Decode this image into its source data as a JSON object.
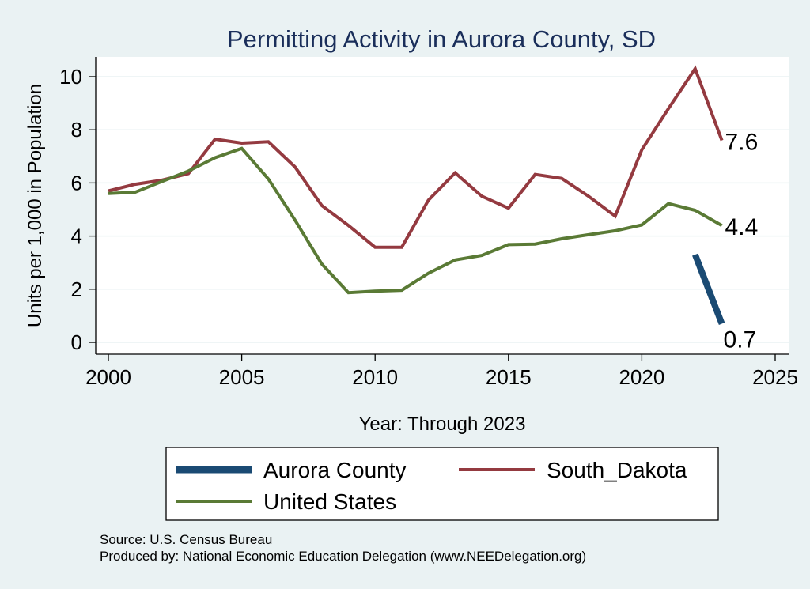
{
  "chart_data": {
    "type": "line",
    "title": "Permitting Activity in Aurora County, SD",
    "xlabel": "Year: Through 2023",
    "ylabel": "Units per 1,000 in Population",
    "xlim": [
      2000,
      2025
    ],
    "ylim": [
      0,
      10
    ],
    "x_ticks": [
      2000,
      2005,
      2010,
      2015,
      2020,
      2025
    ],
    "y_ticks": [
      0,
      2,
      4,
      6,
      8,
      10
    ],
    "grid": true,
    "legend_position": "bottom",
    "series": [
      {
        "name": "Aurora County",
        "color": "#1a4a73",
        "x": [
          2022,
          2023
        ],
        "values": [
          3.3,
          0.7
        ],
        "end_label": "0.7"
      },
      {
        "name": "South_Dakota",
        "color": "#943a40",
        "x": [
          2000,
          2001,
          2002,
          2003,
          2004,
          2005,
          2006,
          2007,
          2008,
          2009,
          2010,
          2011,
          2012,
          2013,
          2014,
          2015,
          2016,
          2017,
          2018,
          2019,
          2020,
          2021,
          2022,
          2023
        ],
        "values": [
          5.7,
          5.95,
          6.1,
          6.35,
          7.65,
          7.5,
          7.55,
          6.6,
          5.15,
          4.4,
          3.58,
          3.58,
          5.35,
          6.38,
          5.5,
          5.05,
          6.32,
          6.17,
          5.5,
          4.75,
          7.25,
          8.8,
          10.3,
          7.6
        ],
        "end_label": "7.6"
      },
      {
        "name": "United States",
        "color": "#5a7a35",
        "x": [
          2000,
          2001,
          2002,
          2003,
          2004,
          2005,
          2006,
          2007,
          2008,
          2009,
          2010,
          2011,
          2012,
          2013,
          2014,
          2015,
          2016,
          2017,
          2018,
          2019,
          2020,
          2021,
          2022,
          2023
        ],
        "values": [
          5.6,
          5.65,
          6.05,
          6.45,
          6.95,
          7.3,
          6.15,
          4.6,
          2.95,
          1.87,
          1.93,
          1.96,
          2.6,
          3.1,
          3.27,
          3.68,
          3.7,
          3.9,
          4.05,
          4.2,
          4.42,
          5.22,
          4.97,
          4.4
        ],
        "end_label": "4.4"
      }
    ],
    "legend": [
      "Aurora County",
      "South_Dakota",
      "United States"
    ]
  },
  "notes": {
    "source": "Source: U.S. Census Bureau",
    "produced_by": "Produced by: National Economic Education Delegation (www.NEEDelegation.org)"
  }
}
